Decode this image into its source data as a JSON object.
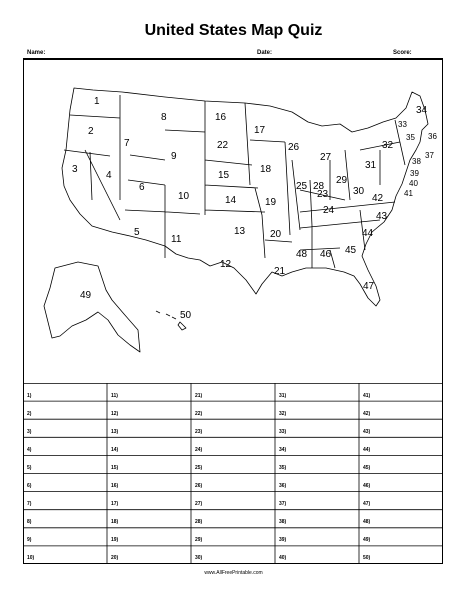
{
  "title": "United States Map Quiz",
  "header": {
    "name_label": "Name:",
    "date_label": "Date:",
    "score_label": "Score:"
  },
  "map_labels": [
    "1",
    "2",
    "3",
    "4",
    "5",
    "6",
    "7",
    "8",
    "9",
    "10",
    "11",
    "12",
    "13",
    "14",
    "15",
    "16",
    "17",
    "18",
    "19",
    "20",
    "21",
    "22",
    "23",
    "24",
    "25",
    "26",
    "27",
    "28",
    "29",
    "30",
    "31",
    "32",
    "33",
    "34",
    "35",
    "36",
    "37",
    "38",
    "39",
    "40",
    "41",
    "42",
    "43",
    "44",
    "45",
    "46",
    "47",
    "48",
    "49",
    "50"
  ],
  "answers": [
    "1)",
    "2)",
    "3)",
    "4)",
    "5)",
    "6)",
    "7)",
    "8)",
    "9)",
    "10)",
    "11)",
    "12)",
    "13)",
    "14)",
    "15)",
    "16)",
    "17)",
    "18)",
    "19)",
    "20)",
    "21)",
    "22)",
    "23)",
    "24)",
    "25)",
    "26)",
    "27)",
    "28)",
    "29)",
    "30)",
    "31)",
    "32)",
    "33)",
    "34)",
    "35)",
    "36)",
    "37)",
    "38)",
    "39)",
    "40)",
    "41)",
    "42)",
    "43)",
    "44)",
    "45)",
    "46)",
    "47)",
    "48)",
    "49)",
    "50)"
  ],
  "footer": "www.AllFreePrintable.com"
}
